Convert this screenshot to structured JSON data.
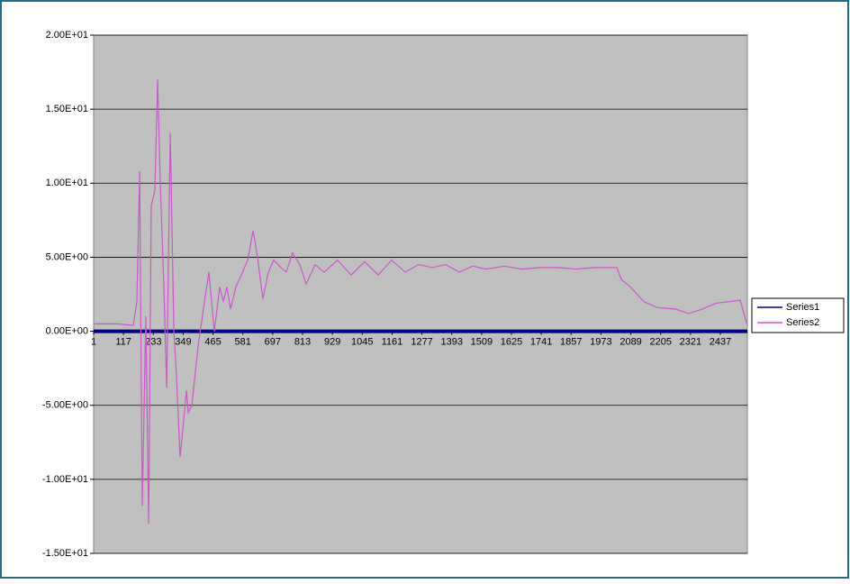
{
  "chart_data": {
    "type": "line",
    "x": [
      1,
      92,
      155,
      169,
      180,
      190,
      204,
      215,
      225,
      239,
      250,
      260,
      274,
      285,
      299,
      313,
      323,
      337,
      351,
      362,
      369,
      383,
      407,
      432,
      449,
      470,
      491,
      505,
      519,
      533,
      554,
      575,
      600,
      621,
      638,
      659,
      680,
      701,
      729,
      750,
      774,
      802,
      827,
      862,
      897,
      949,
      1002,
      1054,
      1107,
      1159,
      1212,
      1264,
      1317,
      1369,
      1422,
      1474,
      1527,
      1597,
      1667,
      1737,
      1807,
      1877,
      1947,
      2035,
      2052,
      2087,
      2140,
      2192,
      2262,
      2315,
      2367,
      2420,
      2472,
      2514,
      2535,
      2542
    ],
    "series": [
      {
        "name": "Series1",
        "color": "#000080",
        "values": [
          0,
          0,
          0,
          0,
          0,
          0,
          0,
          0,
          0,
          0,
          0,
          0,
          0,
          0,
          0,
          0,
          0,
          0,
          0,
          0,
          0,
          0,
          0,
          0,
          0,
          0,
          0,
          0,
          0,
          0,
          0,
          0,
          0,
          0,
          0,
          0,
          0,
          0,
          0,
          0,
          0,
          0,
          0,
          0,
          0,
          0,
          0,
          0,
          0,
          0,
          0,
          0,
          0,
          0,
          0,
          0,
          0,
          0,
          0,
          0,
          0,
          0,
          0,
          0,
          0,
          0,
          0,
          0,
          0,
          0,
          0,
          0,
          0,
          0,
          0,
          0
        ]
      },
      {
        "name": "Series2",
        "color": "#cc55cc",
        "values": [
          0.5,
          0.5,
          0.4,
          2,
          10.8,
          -11.8,
          1,
          -13,
          8.5,
          9.5,
          17,
          10,
          3,
          -3.8,
          13.4,
          0,
          -3,
          -8.5,
          -6,
          -4,
          -5.5,
          -5,
          -1,
          2,
          4,
          0,
          3,
          2,
          3,
          1.5,
          3,
          3.8,
          4.8,
          6.8,
          5,
          2.2,
          4,
          4.8,
          4.3,
          4,
          5.3,
          4.5,
          3.2,
          4.5,
          4,
          4.8,
          3.8,
          4.7,
          3.8,
          4.8,
          4,
          4.5,
          4.3,
          4.5,
          4,
          4.4,
          4.2,
          4.4,
          4.2,
          4.3,
          4.3,
          4.2,
          4.3,
          4.3,
          3.5,
          3,
          2,
          1.6,
          1.5,
          1.2,
          1.5,
          1.9,
          2,
          2.1,
          0.8,
          0.4
        ]
      }
    ],
    "xlim": [
      1,
      2542
    ],
    "xticks": [
      1,
      117,
      233,
      349,
      465,
      581,
      697,
      813,
      929,
      1045,
      1161,
      1277,
      1393,
      1509,
      1625,
      1741,
      1857,
      1973,
      2089,
      2205,
      2321,
      2437
    ],
    "ylim": [
      -15,
      20
    ],
    "yticks": [
      {
        "value": -15,
        "label": "-1.50E+01"
      },
      {
        "value": -10,
        "label": "-1.00E+01"
      },
      {
        "value": -5,
        "label": "-5.00E+00"
      },
      {
        "value": 0,
        "label": "0.00E+00"
      },
      {
        "value": 5,
        "label": "5.00E+00"
      },
      {
        "value": 10,
        "label": "1.00E+01"
      },
      {
        "value": 15,
        "label": "1.50E+01"
      },
      {
        "value": 20,
        "label": "2.00E+01"
      }
    ],
    "grid": true,
    "legend": "right"
  }
}
